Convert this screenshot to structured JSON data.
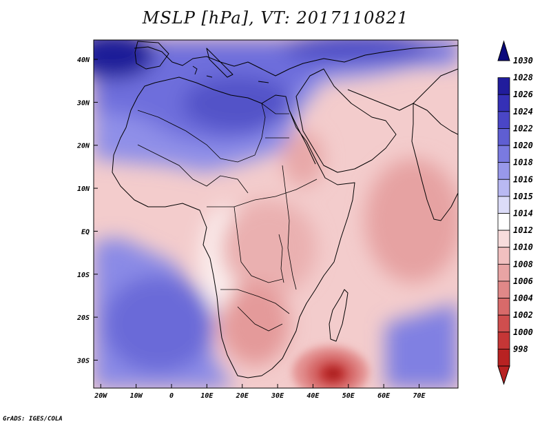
{
  "title": "MSLP [hPa], VT: 2017110821",
  "credit": "GrADS: IGES/COLA",
  "map": {
    "variable": "Mean sea level pressure",
    "units": "hPa",
    "valid_time": "2017110821",
    "lon_range": [
      -22,
      81
    ],
    "lat_range": [
      -36.5,
      44.5
    ],
    "x_ticks": [
      {
        "value": -20,
        "label": "20W"
      },
      {
        "value": -10,
        "label": "10W"
      },
      {
        "value": 0,
        "label": "0"
      },
      {
        "value": 10,
        "label": "10E"
      },
      {
        "value": 20,
        "label": "20E"
      },
      {
        "value": 30,
        "label": "30E"
      },
      {
        "value": 40,
        "label": "40E"
      },
      {
        "value": 50,
        "label": "50E"
      },
      {
        "value": 60,
        "label": "60E"
      },
      {
        "value": 70,
        "label": "70E"
      }
    ],
    "y_ticks": [
      {
        "value": 40,
        "label": "40N"
      },
      {
        "value": 30,
        "label": "30N"
      },
      {
        "value": 20,
        "label": "20N"
      },
      {
        "value": 10,
        "label": "10N"
      },
      {
        "value": 0,
        "label": "EQ"
      },
      {
        "value": -10,
        "label": "10S"
      },
      {
        "value": -20,
        "label": "20S"
      },
      {
        "value": -30,
        "label": "30S"
      }
    ],
    "features": {
      "high_pressure": "Mediterranean / Europe, NW Atlantic near 40N 20W (>1028 hPa)",
      "low_pressure": "Cyclone south of Madagascar near 34S 44E (<1000 hPa)"
    }
  },
  "colorbar": {
    "levels": [
      {
        "label": "1030",
        "color": "#0b0a7c"
      },
      {
        "label": "1028",
        "color": "#211c9c"
      },
      {
        "label": "1026",
        "color": "#3530b6"
      },
      {
        "label": "1024",
        "color": "#4a46c6"
      },
      {
        "label": "1022",
        "color": "#5f5ed2"
      },
      {
        "label": "1020",
        "color": "#7a7ae0"
      },
      {
        "label": "1018",
        "color": "#9898ea"
      },
      {
        "label": "1016",
        "color": "#b9b9f2"
      },
      {
        "label": "1015",
        "color": "#dcdcf8"
      },
      {
        "label": "1014",
        "color": "#ffffff"
      },
      {
        "label": "1012",
        "color": "#f8dcdc"
      },
      {
        "label": "1010",
        "color": "#f1c0c0"
      },
      {
        "label": "1008",
        "color": "#e8a4a4"
      },
      {
        "label": "1006",
        "color": "#e08888"
      },
      {
        "label": "1004",
        "color": "#d86a6a"
      },
      {
        "label": "1002",
        "color": "#cf4e4e"
      },
      {
        "label": "1000",
        "color": "#c53636"
      },
      {
        "label": "998",
        "color": "#b82222"
      }
    ]
  }
}
